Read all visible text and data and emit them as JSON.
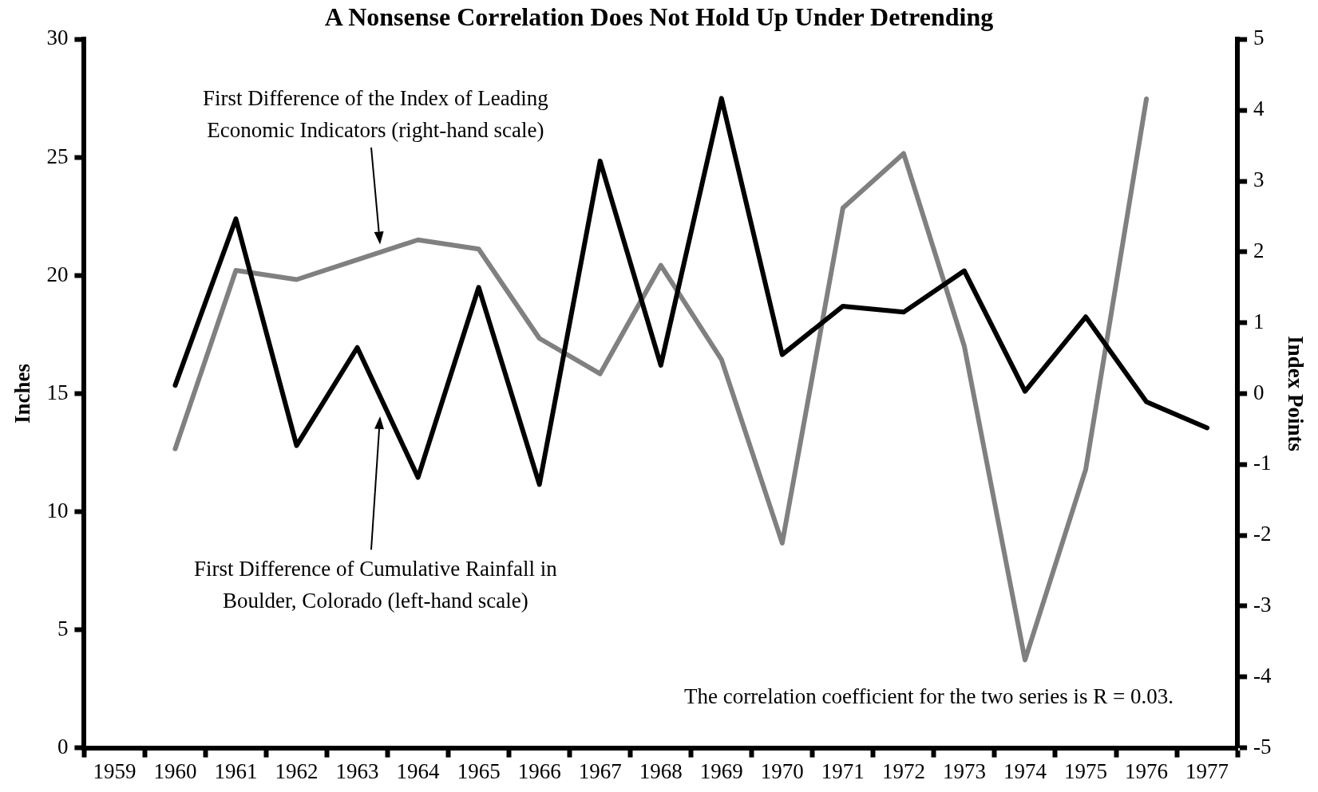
{
  "chart_data": {
    "type": "line",
    "title": "A Nonsense Correlation Does Not Hold Up Under Detrending",
    "ylabel": "Inches",
    "y2label": "Index Points",
    "categories": [
      "1959",
      "1960",
      "1961",
      "1962",
      "1963",
      "1964",
      "1965",
      "1966",
      "1967",
      "1968",
      "1969",
      "1970",
      "1971",
      "1972",
      "1973",
      "1974",
      "1975",
      "1976",
      "1977"
    ],
    "series": [
      {
        "color": "#000000",
        "values": [
          null,
          15.35,
          22.4,
          12.8,
          16.95,
          11.45,
          19.5,
          11.15,
          24.85,
          16.2,
          27.5,
          16.65,
          18.7,
          18.45,
          20.2,
          15.1,
          18.25,
          14.65,
          13.55
        ]
      },
      {
        "color": "#808080",
        "axis": "y2",
        "values": [
          null,
          -0.78,
          1.74,
          1.61,
          1.89,
          2.17,
          2.04,
          0.78,
          0.28,
          1.81,
          0.48,
          -2.11,
          2.62,
          3.39,
          0.67,
          -3.76,
          -1.07,
          4.16,
          null
        ]
      }
    ],
    "ylim": [
      0,
      30
    ],
    "yticks": [
      0,
      5,
      10,
      15,
      20,
      25,
      30
    ],
    "y2lim": [
      -5,
      5
    ],
    "y2ticks": [
      -5,
      -4,
      -3,
      -2,
      -1,
      0,
      1,
      2,
      3,
      4,
      5
    ],
    "annotations": [
      "First Difference of Cumulative Rainfall in Boulder, Colorado (left-hand scale)",
      "First Difference of the Index of Leading Economic Indicators (right-hand scale)",
      "The correlation coefficient for the two series is R =  0.03."
    ],
    "grid": false,
    "legend": false,
    "marker": "none",
    "line_style": "solid"
  }
}
